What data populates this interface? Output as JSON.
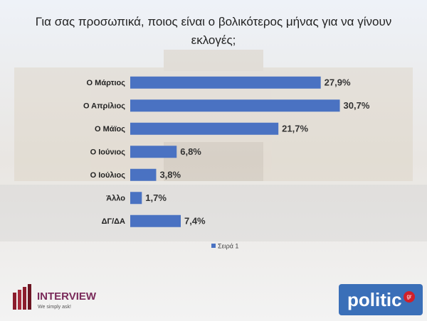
{
  "chart_data": {
    "type": "bar",
    "orientation": "horizontal",
    "title": "Για σας προσωπικά, ποιος είναι ο βολικότερος μήνας για να γίνουν εκλογές;",
    "categories": [
      "Ο Μάρτιος",
      "Ο Απρίλιος",
      "Ο Μάϊος",
      "Ο Ιούνιος",
      "Ο Ιούλιος",
      "Άλλο",
      "ΔΓ/ΔΑ"
    ],
    "series": [
      {
        "name": "Σειρά 1",
        "color": "#4a72c2",
        "values": [
          27.9,
          30.7,
          21.7,
          6.8,
          3.8,
          1.7,
          7.4
        ],
        "value_labels": [
          "27,9%",
          "30,7%",
          "21,7%",
          "6,8%",
          "3,8%",
          "1,7%",
          "7,4%"
        ]
      }
    ],
    "xlim": [
      0,
      32
    ],
    "legend": "bottom"
  },
  "logos": {
    "left": {
      "name": "INTERVIEW",
      "tagline": "We simply ask!"
    },
    "right": {
      "name": "politic",
      "suffix": "gr"
    }
  }
}
